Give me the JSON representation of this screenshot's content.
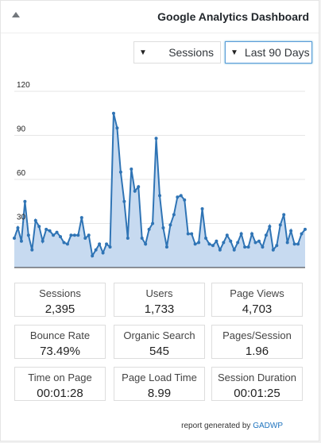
{
  "header": {
    "title": "Google Analytics Dashboard"
  },
  "controls": {
    "metric": "Sessions",
    "period": "Last 90 Days"
  },
  "chart_data": {
    "type": "area",
    "y_ticks": [
      "120",
      "90",
      "60",
      "30"
    ],
    "ylim": [
      0,
      120
    ],
    "color": "#2f74b5",
    "fill": "#c7daf0",
    "values": [
      20,
      27,
      18,
      45,
      22,
      12,
      32,
      28,
      18,
      26,
      25,
      22,
      24,
      21,
      17,
      16,
      22,
      22,
      22,
      34,
      20,
      22,
      8,
      12,
      16,
      10,
      16,
      14,
      105,
      95,
      65,
      45,
      20,
      67,
      52,
      55,
      20,
      16,
      26,
      30,
      88,
      49,
      27,
      14,
      29,
      36,
      48,
      49,
      46,
      23,
      23,
      16,
      17,
      40,
      20,
      16,
      15,
      18,
      12,
      17,
      22,
      18,
      12,
      17,
      23,
      14,
      14,
      23,
      17,
      18,
      14,
      22,
      28,
      12,
      15,
      29,
      36,
      17,
      25,
      16,
      16,
      23,
      26
    ]
  },
  "stats": [
    {
      "label": "Sessions",
      "value": "2,395"
    },
    {
      "label": "Users",
      "value": "1,733"
    },
    {
      "label": "Page Views",
      "value": "4,703"
    },
    {
      "label": "Bounce Rate",
      "value": "73.49%"
    },
    {
      "label": "Organic Search",
      "value": "545"
    },
    {
      "label": "Pages/Session",
      "value": "1.96"
    },
    {
      "label": "Time on Page",
      "value": "00:01:28"
    },
    {
      "label": "Page Load Time",
      "value": "8.99"
    },
    {
      "label": "Session Duration",
      "value": "00:01:25"
    }
  ],
  "footer": {
    "prefix": "report generated by",
    "link": "GADWP"
  }
}
